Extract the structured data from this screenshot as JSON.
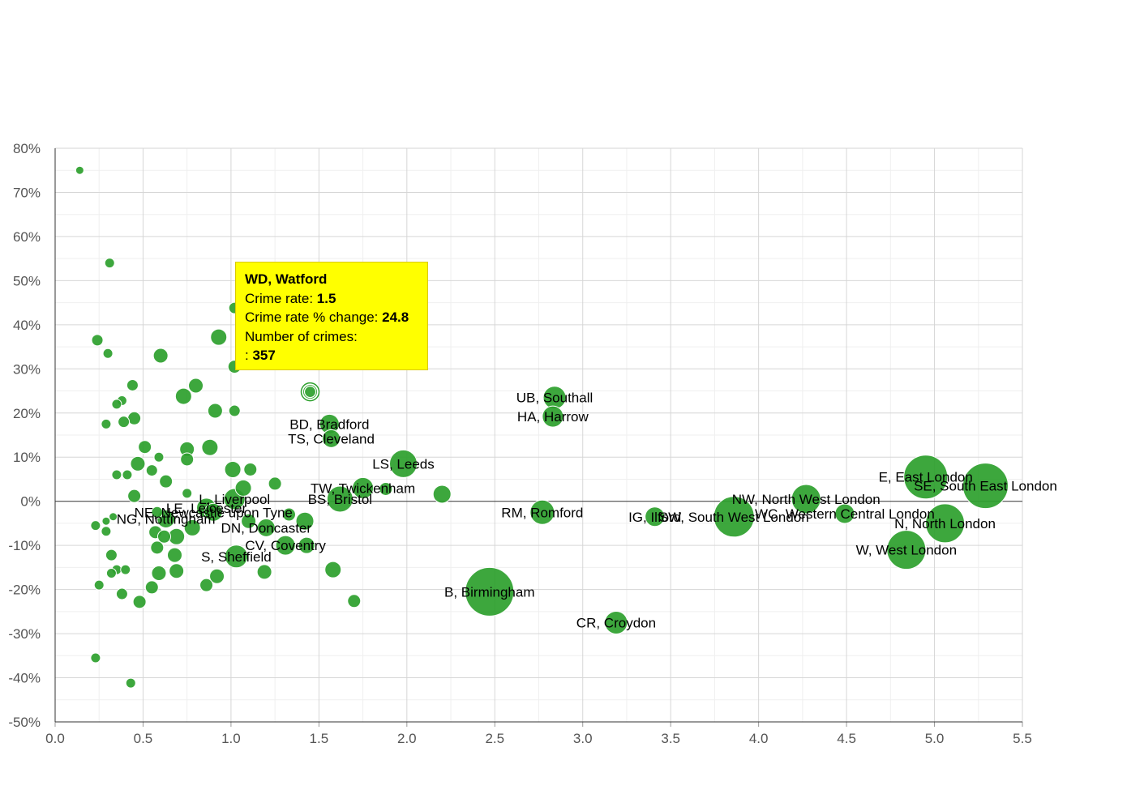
{
  "chart_data": {
    "type": "scatter",
    "xlim": [
      0,
      5.5
    ],
    "ylim": [
      -50,
      80
    ],
    "x_ticks": [
      "0.0",
      "0.5",
      "1.0",
      "1.5",
      "2.0",
      "2.5",
      "3.0",
      "3.5",
      "4.0",
      "4.5",
      "5.0",
      "5.5"
    ],
    "y_ticks": [
      "80%",
      "70%",
      "60%",
      "50%",
      "40%",
      "30%",
      "20%",
      "10%",
      "0%",
      "-10%",
      "-20%",
      "-30%",
      "-40%",
      "-50%"
    ],
    "grid": true,
    "colors": {
      "bubble": "#2ca02c",
      "tooltip_bg": "#ffff00"
    },
    "points": [
      {
        "label": "UB, Southall",
        "x": 2.84,
        "y": 23.5,
        "r": 14
      },
      {
        "label": "HA, Harrow",
        "x": 2.83,
        "y": 19.2,
        "r": 13
      },
      {
        "label": "BD, Bradford",
        "x": 1.56,
        "y": 17.5,
        "r": 12
      },
      {
        "label": "TS, Cleveland",
        "x": 1.57,
        "y": 14.2,
        "r": 11
      },
      {
        "label": "LS, Leeds",
        "x": 1.98,
        "y": 8.5,
        "r": 17
      },
      {
        "label": "TW, Twickenham",
        "x": 1.75,
        "y": 3.0,
        "r": 13
      },
      {
        "label": "BS, Bristol",
        "x": 1.62,
        "y": 0.5,
        "r": 16
      },
      {
        "label": "RM, Romford",
        "x": 2.77,
        "y": -2.5,
        "r": 15
      },
      {
        "label": "IG, Ilford",
        "x": 3.41,
        "y": -3.5,
        "r": 12
      },
      {
        "label": "SW, South West London",
        "x": 3.86,
        "y": -3.5,
        "r": 25
      },
      {
        "label": "NW, North West London",
        "x": 4.27,
        "y": 0.5,
        "r": 18
      },
      {
        "label": "WC, Western Central London",
        "x": 4.49,
        "y": -2.8,
        "r": 12
      },
      {
        "label": "E, East London",
        "x": 4.95,
        "y": 5.5,
        "r": 27
      },
      {
        "label": "SE, South East London",
        "x": 5.29,
        "y": 3.5,
        "r": 28
      },
      {
        "label": "N, North London",
        "x": 5.06,
        "y": -5.0,
        "r": 24
      },
      {
        "label": "W, West London",
        "x": 4.84,
        "y": -11.0,
        "r": 24
      },
      {
        "label": "B, Birmingham",
        "x": 2.47,
        "y": -20.5,
        "r": 30
      },
      {
        "label": "CR, Croydon",
        "x": 3.19,
        "y": -27.5,
        "r": 14
      },
      {
        "label": "L, Liverpool",
        "x": 1.02,
        "y": 0.5,
        "r": 13
      },
      {
        "label": "LE, Leicester",
        "x": 0.86,
        "y": -1.5,
        "r": 12
      },
      {
        "label": "NE, Newcastle upon Tyne",
        "x": 0.9,
        "y": -2.5,
        "r": 11
      },
      {
        "label": "NG, Nottingham",
        "x": 0.63,
        "y": -4.0,
        "r": 11
      },
      {
        "label": "DN, Doncaster",
        "x": 1.2,
        "y": -6.0,
        "r": 11
      },
      {
        "label": "CV, Coventry",
        "x": 1.31,
        "y": -10.0,
        "r": 12
      },
      {
        "label": "S, Sheffield",
        "x": 1.03,
        "y": -12.5,
        "r": 14
      },
      {
        "label": "WD, Watford",
        "x": 1.45,
        "y": 24.8,
        "r": 9
      },
      {
        "label": "",
        "x": 0.14,
        "y": 75,
        "r": 5
      },
      {
        "label": "",
        "x": 0.31,
        "y": 54,
        "r": 6
      },
      {
        "label": "",
        "x": 0.24,
        "y": 36.5,
        "r": 7
      },
      {
        "label": "",
        "x": 0.3,
        "y": 33.5,
        "r": 6
      },
      {
        "label": "",
        "x": 0.6,
        "y": 33,
        "r": 9
      },
      {
        "label": "",
        "x": 0.93,
        "y": 37.2,
        "r": 10
      },
      {
        "label": "",
        "x": 1.02,
        "y": 43.8,
        "r": 7
      },
      {
        "label": "",
        "x": 1.02,
        "y": 30.5,
        "r": 8
      },
      {
        "label": "",
        "x": 0.44,
        "y": 26.3,
        "r": 7
      },
      {
        "label": "",
        "x": 0.73,
        "y": 23.8,
        "r": 10
      },
      {
        "label": "",
        "x": 0.8,
        "y": 26.2,
        "r": 9
      },
      {
        "label": "",
        "x": 0.38,
        "y": 22.8,
        "r": 6
      },
      {
        "label": "",
        "x": 0.35,
        "y": 22,
        "r": 6
      },
      {
        "label": "",
        "x": 0.45,
        "y": 18.8,
        "r": 8
      },
      {
        "label": "",
        "x": 0.39,
        "y": 18,
        "r": 7
      },
      {
        "label": "",
        "x": 0.29,
        "y": 17.5,
        "r": 6
      },
      {
        "label": "",
        "x": 0.91,
        "y": 20.5,
        "r": 9
      },
      {
        "label": "",
        "x": 1.02,
        "y": 20.5,
        "r": 7
      },
      {
        "label": "",
        "x": 0.51,
        "y": 12.3,
        "r": 8
      },
      {
        "label": "",
        "x": 0.59,
        "y": 10,
        "r": 6
      },
      {
        "label": "",
        "x": 0.75,
        "y": 11.8,
        "r": 9
      },
      {
        "label": "",
        "x": 0.88,
        "y": 12.2,
        "r": 10
      },
      {
        "label": "",
        "x": 0.47,
        "y": 8.5,
        "r": 9
      },
      {
        "label": "",
        "x": 0.75,
        "y": 9.5,
        "r": 8
      },
      {
        "label": "",
        "x": 0.55,
        "y": 7,
        "r": 7
      },
      {
        "label": "",
        "x": 0.41,
        "y": 6,
        "r": 6
      },
      {
        "label": "",
        "x": 0.35,
        "y": 6,
        "r": 6
      },
      {
        "label": "",
        "x": 1.01,
        "y": 7.2,
        "r": 10
      },
      {
        "label": "",
        "x": 1.11,
        "y": 7.2,
        "r": 8
      },
      {
        "label": "",
        "x": 0.63,
        "y": 4.5,
        "r": 8
      },
      {
        "label": "",
        "x": 1.25,
        "y": 4,
        "r": 8
      },
      {
        "label": "",
        "x": 2.2,
        "y": 1.6,
        "r": 11
      },
      {
        "label": "",
        "x": 1.88,
        "y": 2.8,
        "r": 8
      },
      {
        "label": "",
        "x": 1.07,
        "y": 3,
        "r": 10
      },
      {
        "label": "",
        "x": 0.45,
        "y": 1.2,
        "r": 8
      },
      {
        "label": "",
        "x": 0.75,
        "y": 1.8,
        "r": 6
      },
      {
        "label": "",
        "x": 0.58,
        "y": -2.5,
        "r": 7
      },
      {
        "label": "",
        "x": 0.33,
        "y": -3.5,
        "r": 5
      },
      {
        "label": "",
        "x": 0.29,
        "y": -4.5,
        "r": 5
      },
      {
        "label": "",
        "x": 0.23,
        "y": -5.5,
        "r": 6
      },
      {
        "label": "",
        "x": 0.29,
        "y": -6.8,
        "r": 6
      },
      {
        "label": "",
        "x": 0.78,
        "y": -6,
        "r": 10
      },
      {
        "label": "",
        "x": 1.1,
        "y": -4.5,
        "r": 9
      },
      {
        "label": "",
        "x": 1.33,
        "y": -3,
        "r": 8
      },
      {
        "label": "",
        "x": 1.42,
        "y": -4.5,
        "r": 11
      },
      {
        "label": "",
        "x": 0.57,
        "y": -7,
        "r": 8
      },
      {
        "label": "",
        "x": 0.62,
        "y": -8,
        "r": 8
      },
      {
        "label": "",
        "x": 0.69,
        "y": -8,
        "r": 10
      },
      {
        "label": "",
        "x": 0.58,
        "y": -10.5,
        "r": 8
      },
      {
        "label": "",
        "x": 1.43,
        "y": -10,
        "r": 10
      },
      {
        "label": "",
        "x": 0.32,
        "y": -12.2,
        "r": 7
      },
      {
        "label": "",
        "x": 0.68,
        "y": -12.2,
        "r": 9
      },
      {
        "label": "",
        "x": 0.35,
        "y": -15.5,
        "r": 6
      },
      {
        "label": "",
        "x": 0.4,
        "y": -15.5,
        "r": 6
      },
      {
        "label": "",
        "x": 0.32,
        "y": -16.3,
        "r": 6
      },
      {
        "label": "",
        "x": 0.59,
        "y": -16.3,
        "r": 9
      },
      {
        "label": "",
        "x": 0.69,
        "y": -15.8,
        "r": 9
      },
      {
        "label": "",
        "x": 0.92,
        "y": -17,
        "r": 9
      },
      {
        "label": "",
        "x": 1.19,
        "y": -16,
        "r": 9
      },
      {
        "label": "",
        "x": 1.58,
        "y": -15.5,
        "r": 10
      },
      {
        "label": "",
        "x": 0.25,
        "y": -19,
        "r": 6
      },
      {
        "label": "",
        "x": 0.55,
        "y": -19.5,
        "r": 8
      },
      {
        "label": "",
        "x": 0.86,
        "y": -19,
        "r": 8
      },
      {
        "label": "",
        "x": 0.38,
        "y": -21,
        "r": 7
      },
      {
        "label": "",
        "x": 0.48,
        "y": -22.8,
        "r": 8
      },
      {
        "label": "",
        "x": 1.7,
        "y": -22.6,
        "r": 8
      },
      {
        "label": "",
        "x": 0.23,
        "y": -35.5,
        "r": 6
      },
      {
        "label": "",
        "x": 0.43,
        "y": -41.2,
        "r": 6
      }
    ],
    "tooltip": {
      "title": "WD, Watford",
      "rate_label": "Crime rate: ",
      "rate_value": "1.5",
      "change_label": "Crime rate % change: ",
      "change_value": "24.8",
      "count_label": "Number of crimes:",
      "count_prefix": ": ",
      "count_value": "357"
    }
  }
}
